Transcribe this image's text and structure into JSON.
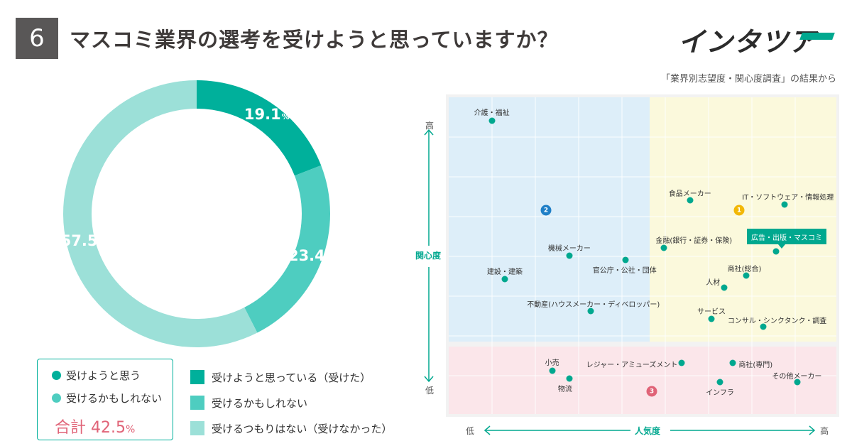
{
  "header": {
    "number": "6",
    "title": "マスコミ業界の選考を受けようと思っていますか？",
    "logo": "インタツア",
    "source_note": "「業界別志望度・関心度調査」の結果から"
  },
  "summary": {
    "row1": "受けようと思う",
    "row2": "受けるかもしれない",
    "total_label": "合計",
    "total_value": "42.5",
    "total_unit": "%"
  },
  "legend": [
    {
      "label": "受けようと思っている（受けた）",
      "color": "#00b09b"
    },
    {
      "label": "受けるかもしれない",
      "color": "#4ecdc0"
    },
    {
      "label": "受けるつもりはない（受けなかった）",
      "color": "#9ce0d8"
    }
  ],
  "map_labels": {
    "y_high": "高",
    "y_low": "低",
    "y_title": "関心度",
    "x_low": "低",
    "x_high": "高",
    "x_title": "人気度",
    "callout": "広告・出版・マスコミ",
    "zone1": "1",
    "zone2": "2",
    "zone3": "3"
  },
  "chart_data": [
    {
      "type": "pie",
      "style": "donut",
      "categories": [
        "受けようと思っている（受けた）",
        "受けるかもしれない",
        "受けるつもりはない（受けなかった）"
      ],
      "values": [
        19.1,
        23.4,
        57.5
      ],
      "unit": "%",
      "colors": [
        "#00b09b",
        "#4ecdc0",
        "#9ce0d8"
      ]
    },
    {
      "type": "scatter",
      "xlabel": "人気度",
      "ylabel": "関心度",
      "xlim": [
        0,
        9
      ],
      "ylim": [
        0,
        8
      ],
      "grid": true,
      "points": [
        {
          "label": "介護・福祉",
          "x": 1.0,
          "y": 7.4
        },
        {
          "label": "食品メーカー",
          "x": 5.6,
          "y": 5.4
        },
        {
          "label": "IT・ソフトウェア・情報処理",
          "x": 7.8,
          "y": 5.3
        },
        {
          "label": "金融(銀行・証券・保険)",
          "x": 5.0,
          "y": 4.2
        },
        {
          "label": "広告・出版・マスコミ",
          "x": 7.6,
          "y": 4.1
        },
        {
          "label": "機械メーカー",
          "x": 2.8,
          "y": 4.0
        },
        {
          "label": "官公庁・公社・団体",
          "x": 4.1,
          "y": 3.9
        },
        {
          "label": "商社(総合)",
          "x": 6.9,
          "y": 3.5
        },
        {
          "label": "建設・建築",
          "x": 1.3,
          "y": 3.4
        },
        {
          "label": "人材",
          "x": 6.4,
          "y": 3.2
        },
        {
          "label": "不動産(ハウスメーカー・ディベロッパー)",
          "x": 3.3,
          "y": 2.6
        },
        {
          "label": "サービス",
          "x": 6.1,
          "y": 2.4
        },
        {
          "label": "コンサル・シンクタンク・調査",
          "x": 7.3,
          "y": 2.2
        },
        {
          "label": "レジャー・アミューズメント",
          "x": 5.4,
          "y": 1.3
        },
        {
          "label": "商社(専門)",
          "x": 6.6,
          "y": 1.3
        },
        {
          "label": "小売",
          "x": 2.4,
          "y": 1.1
        },
        {
          "label": "物流",
          "x": 2.8,
          "y": 0.9
        },
        {
          "label": "インフラ",
          "x": 6.3,
          "y": 0.8
        },
        {
          "label": "その他メーカー",
          "x": 8.1,
          "y": 0.8
        }
      ]
    }
  ]
}
